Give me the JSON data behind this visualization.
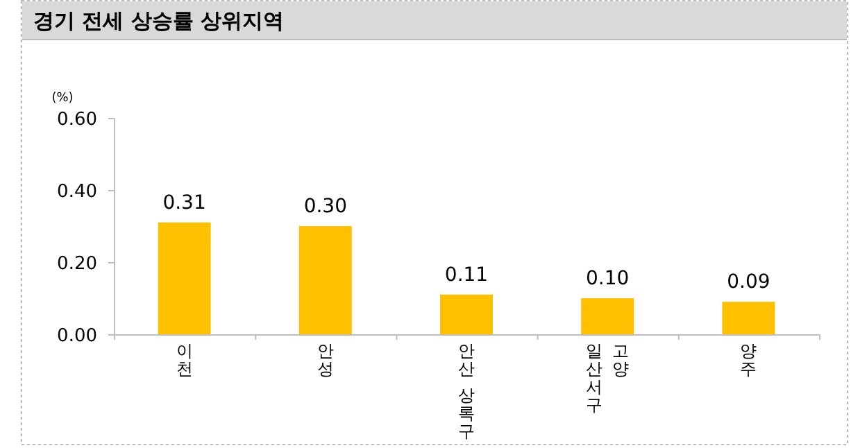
{
  "chart_data": {
    "type": "bar",
    "title": "경기 전세 상승률 상위지역",
    "ylabel": "(%)",
    "categories": [
      "이천",
      "안성",
      "안산 상록구",
      "고양\n일산서구",
      "양주"
    ],
    "values": [
      0.31,
      0.3,
      0.11,
      0.1,
      0.09
    ],
    "color": "#ffc000",
    "ylim": [
      0,
      0.6
    ],
    "yticks": [
      {
        "value": 0,
        "label": "0.00"
      },
      {
        "value": 0.2,
        "label": "0.20"
      },
      {
        "value": 0.4,
        "label": "0.40"
      },
      {
        "value": 0.6,
        "label": "0.60"
      }
    ],
    "value_labels": [
      "0.31",
      "0.30",
      "0.11",
      "0.10",
      "0.09"
    ],
    "grid": false
  }
}
